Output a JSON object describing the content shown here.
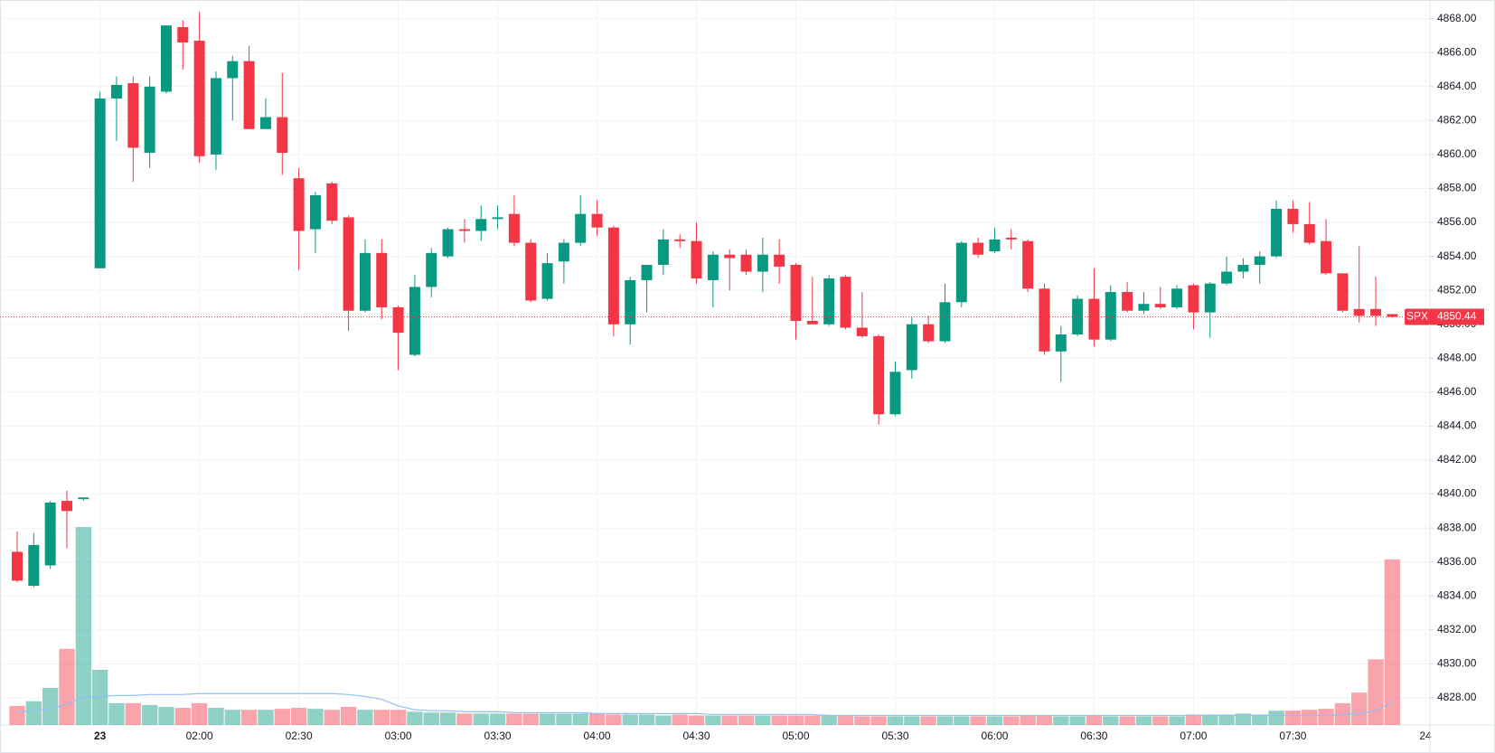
{
  "chart_data": {
    "type": "candlestick",
    "symbol": "SPX",
    "last_price": 4850.44,
    "up_color": "#089981",
    "down_color": "#f23645",
    "grid": true,
    "ylim": [
      4826.4,
      4869.1
    ],
    "yticks": [
      {
        "value": 4828,
        "label": "4828.00"
      },
      {
        "value": 4830,
        "label": "4830.00"
      },
      {
        "value": 4832,
        "label": "4832.00"
      },
      {
        "value": 4834,
        "label": "4834.00"
      },
      {
        "value": 4836,
        "label": "4836.00"
      },
      {
        "value": 4838,
        "label": "4838.00"
      },
      {
        "value": 4840,
        "label": "4840.00"
      },
      {
        "value": 4842,
        "label": "4842.00"
      },
      {
        "value": 4844,
        "label": "4844.00"
      },
      {
        "value": 4846,
        "label": "4846.00"
      },
      {
        "value": 4848,
        "label": "4848.00"
      },
      {
        "value": 4850,
        "label": "4850.00"
      },
      {
        "value": 4852,
        "label": "4852.00"
      },
      {
        "value": 4854,
        "label": "4854.00"
      },
      {
        "value": 4856,
        "label": "4856.00"
      },
      {
        "value": 4858,
        "label": "4858.00"
      },
      {
        "value": 4860,
        "label": "4860.00"
      },
      {
        "value": 4862,
        "label": "4862.00"
      },
      {
        "value": 4864,
        "label": "4864.00"
      },
      {
        "value": 4866,
        "label": "4866.00"
      },
      {
        "value": 4868,
        "label": "4868.00"
      }
    ],
    "categories": [
      null,
      null,
      null,
      null,
      null,
      "23",
      null,
      null,
      null,
      null,
      null,
      "02:00",
      null,
      null,
      null,
      null,
      null,
      "02:30",
      null,
      null,
      null,
      null,
      null,
      "03:00",
      null,
      null,
      null,
      null,
      null,
      "03:30",
      null,
      null,
      null,
      null,
      null,
      "04:00",
      null,
      null,
      null,
      null,
      null,
      "04:30",
      null,
      null,
      null,
      null,
      null,
      "05:00",
      null,
      null,
      null,
      null,
      null,
      "05:30",
      null,
      null,
      null,
      null,
      null,
      "06:00",
      null,
      null,
      null,
      null,
      null,
      "06:30",
      null,
      null,
      null,
      null,
      null,
      "07:00",
      null,
      null,
      null,
      null,
      null,
      "07:30",
      null,
      null,
      null,
      null,
      null,
      null
    ],
    "x_end_label": "24",
    "open": [
      4836.6,
      4834.6,
      4835.8,
      4839.6,
      4839.7,
      4853.3,
      4863.3,
      4864.2,
      4860.1,
      4863.7,
      4867.5,
      4866.7,
      4860.0,
      4864.5,
      4865.5,
      4861.5,
      4862.2,
      4858.6,
      4855.6,
      4858.3,
      4856.3,
      4850.8,
      4854.2,
      4851.0,
      4848.2,
      4852.2,
      4854.0,
      4855.6,
      4855.5,
      4856.2,
      4856.5,
      4854.8,
      4851.5,
      4853.7,
      4854.8,
      4856.5,
      4855.7,
      4850.0,
      4852.6,
      4853.5,
      4855.0,
      4854.9,
      4852.6,
      4854.1,
      4854.1,
      4853.1,
      4854.1,
      4853.5,
      4850.2,
      4850.0,
      4852.8,
      4849.8,
      4849.3,
      4844.7,
      4847.3,
      4850.0,
      4849.0,
      4851.3,
      4854.8,
      4854.3,
      4855.1,
      4854.9,
      4852.1,
      4848.4,
      4849.4,
      4851.5,
      4849.1,
      4851.9,
      4850.8,
      4851.2,
      4851.0,
      4852.3,
      4850.7,
      4852.4,
      4853.1,
      4853.5,
      4854.0,
      4856.8,
      4855.9,
      4854.9,
      4853.0,
      4850.9,
      4850.9,
      4850.6
    ],
    "high": [
      4837.8,
      4837.7,
      4839.6,
      4840.2,
      4839.8,
      4863.7,
      4864.6,
      4864.6,
      4864.6,
      4867.6,
      4867.9,
      4868.4,
      4864.9,
      4865.8,
      4866.4,
      4863.3,
      4864.8,
      4859.2,
      4857.8,
      4858.4,
      4856.4,
      4855.0,
      4855.0,
      4851.1,
      4852.9,
      4854.5,
      4855.7,
      4856.2,
      4857.0,
      4857.0,
      4857.6,
      4855.0,
      4854.2,
      4855.0,
      4857.6,
      4857.3,
      4855.8,
      4852.8,
      4853.5,
      4855.6,
      4855.3,
      4856.0,
      4854.3,
      4854.4,
      4854.4,
      4855.1,
      4855.0,
      4853.6,
      4852.8,
      4852.9,
      4852.9,
      4851.9,
      4849.4,
      4847.8,
      4850.4,
      4850.5,
      4852.4,
      4854.9,
      4855.1,
      4855.7,
      4855.6,
      4855.0,
      4852.4,
      4849.9,
      4851.7,
      4853.3,
      4852.3,
      4852.5,
      4851.9,
      4852.2,
      4852.3,
      4852.4,
      4852.5,
      4854.0,
      4853.9,
      4854.3,
      4857.3,
      4857.3,
      4857.2,
      4856.2,
      4853.0,
      4854.6,
      4852.8,
      4850.6
    ],
    "low": [
      4834.8,
      4834.5,
      4835.6,
      4836.8,
      4839.6,
      4853.3,
      4860.8,
      4858.4,
      4859.2,
      4863.6,
      4865.0,
      4859.5,
      4859.1,
      4862.0,
      4861.5,
      4861.5,
      4858.8,
      4853.2,
      4854.2,
      4855.9,
      4849.6,
      4850.7,
      4850.3,
      4847.3,
      4848.1,
      4851.6,
      4853.9,
      4854.8,
      4854.9,
      4855.6,
      4854.6,
      4851.3,
      4851.4,
      4852.4,
      4854.6,
      4855.2,
      4849.3,
      4848.8,
      4850.7,
      4852.9,
      4854.5,
      4852.4,
      4851.0,
      4852.0,
      4852.9,
      4851.9,
      4852.4,
      4849.1,
      4850.0,
      4849.9,
      4849.7,
      4849.2,
      4844.1,
      4844.6,
      4846.8,
      4848.9,
      4848.9,
      4851.0,
      4853.9,
      4854.2,
      4854.4,
      4851.9,
      4848.2,
      4846.6,
      4849.3,
      4848.7,
      4849.0,
      4850.7,
      4850.6,
      4850.9,
      4850.9,
      4849.7,
      4849.2,
      4852.3,
      4852.7,
      4852.4,
      4853.9,
      4855.4,
      4854.7,
      4852.9,
      4850.7,
      4850.1,
      4849.9,
      4850.4
    ],
    "close": [
      4834.9,
      4837.0,
      4839.5,
      4839.0,
      4839.8,
      4863.3,
      4864.1,
      4860.4,
      4864.0,
      4867.6,
      4866.6,
      4859.9,
      4864.5,
      4865.5,
      4861.5,
      4862.2,
      4860.1,
      4855.5,
      4857.6,
      4856.1,
      4850.8,
      4854.2,
      4851.0,
      4849.5,
      4852.2,
      4854.2,
      4855.6,
      4855.5,
      4856.2,
      4856.3,
      4854.8,
      4851.4,
      4853.6,
      4854.8,
      4856.5,
      4855.7,
      4850.0,
      4852.6,
      4853.5,
      4855.0,
      4854.9,
      4852.7,
      4854.1,
      4853.9,
      4853.1,
      4854.1,
      4853.4,
      4850.2,
      4850.0,
      4852.7,
      4849.8,
      4849.3,
      4844.7,
      4847.2,
      4850.0,
      4849.0,
      4851.3,
      4854.8,
      4854.1,
      4855.0,
      4855.0,
      4852.1,
      4848.4,
      4849.4,
      4851.5,
      4849.1,
      4851.9,
      4850.8,
      4851.2,
      4851.0,
      4852.1,
      4850.7,
      4852.4,
      4853.1,
      4853.5,
      4854.0,
      4856.8,
      4855.9,
      4854.8,
      4853.0,
      4850.8,
      4850.5,
      4850.5,
      4850.44
    ],
    "volume": [
      20,
      25,
      39,
      80,
      208,
      58,
      23,
      23,
      21,
      19,
      18,
      23,
      18,
      16,
      16,
      16,
      17,
      18,
      17,
      16,
      19,
      16,
      16,
      16,
      14,
      13,
      13,
      12,
      12,
      12,
      12,
      12,
      12,
      12,
      12,
      12,
      11,
      11,
      11,
      10,
      11,
      10,
      10,
      10,
      10,
      10,
      10,
      10,
      10,
      10,
      10,
      9,
      9,
      9,
      9,
      9,
      9,
      9,
      9,
      9,
      9,
      10,
      10,
      9,
      9,
      10,
      9,
      9,
      9,
      9,
      9,
      11,
      11,
      11,
      12,
      11,
      15,
      15,
      16,
      17,
      23,
      34,
      69,
      174
    ],
    "volume_ma": [
      14,
      15,
      17,
      22,
      29,
      30,
      31,
      31,
      32,
      32,
      32,
      33,
      33,
      33,
      33,
      33,
      33,
      33,
      33,
      33,
      32,
      30,
      27,
      20,
      16,
      15,
      15,
      14,
      14,
      14,
      13,
      13,
      13,
      13,
      13,
      12,
      12,
      12,
      12,
      12,
      12,
      12,
      11,
      11,
      11,
      11,
      11,
      11,
      11,
      10,
      10,
      10,
      10,
      10,
      10,
      10,
      10,
      10,
      10,
      10,
      10,
      10,
      10,
      10,
      10,
      10,
      10,
      10,
      10,
      10,
      10,
      10,
      10,
      10,
      10,
      10,
      10,
      10,
      10,
      10,
      11,
      12,
      15,
      24
    ]
  }
}
